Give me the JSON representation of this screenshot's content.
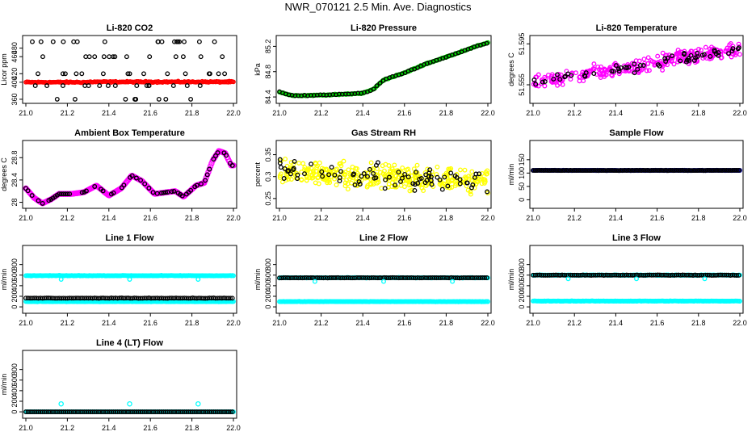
{
  "page": {
    "title": "NWR_070121  2.5 Min. Ave. Diagnostics"
  },
  "chart_data": [
    {
      "type": "scatter",
      "title": "Li-820 CO2",
      "xlabel": "",
      "ylabel": "Licor ppm",
      "xlim": [
        21.0,
        22.0
      ],
      "ylim": [
        358,
        502
      ],
      "xticks": [
        "21.0",
        "21.2",
        "21.4",
        "21.6",
        "21.8",
        "22.0"
      ],
      "yticks": [
        360,
        400,
        420,
        460,
        480
      ],
      "series": [
        {
          "name": "co2_main",
          "color": "#ff0000",
          "mean": 400,
          "noise": 1.2,
          "x": [
            21.0,
            22.0
          ]
        },
        {
          "name": "co2_flag",
          "color": "#000000",
          "levels": [
            360,
            392,
            420,
            460,
            495
          ],
          "x": [
            21.0,
            22.0
          ]
        }
      ]
    },
    {
      "type": "scatter",
      "title": "Li-820 Pressure",
      "xlabel": "",
      "ylabel": "kPa",
      "xlim": [
        21.0,
        22.0
      ],
      "ylim": [
        84.35,
        85.32
      ],
      "xticks": [
        "21.0",
        "21.2",
        "21.4",
        "21.6",
        "21.8",
        "22.0"
      ],
      "yticks": [
        84.4,
        84.8,
        85.2
      ],
      "series": [
        {
          "name": "pressure",
          "color": "#00cc00",
          "x": [
            21.0,
            21.05,
            21.1,
            21.2,
            21.3,
            21.4,
            21.45,
            21.5,
            21.6,
            21.7,
            21.8,
            21.9,
            22.0
          ],
          "y": [
            84.48,
            84.43,
            84.42,
            84.43,
            84.44,
            84.46,
            84.52,
            84.67,
            84.78,
            84.92,
            85.03,
            85.15,
            85.26
          ]
        },
        {
          "name": "pressure_flag",
          "color": "#000000",
          "x": [
            21.0,
            21.05,
            21.1,
            21.2,
            21.3,
            21.4,
            21.45,
            21.5,
            21.6,
            21.7,
            21.8,
            21.9,
            22.0
          ],
          "y": [
            84.48,
            84.43,
            84.42,
            84.43,
            84.44,
            84.46,
            84.52,
            84.67,
            84.78,
            84.92,
            85.03,
            85.15,
            85.26
          ]
        }
      ]
    },
    {
      "type": "scatter",
      "title": "Li-820 Temperature",
      "xlabel": "",
      "ylabel": "degrees C",
      "xlim": [
        21.0,
        22.0
      ],
      "ylim": [
        51.54,
        51.6
      ],
      "xticks": [
        "21.0",
        "21.2",
        "21.4",
        "21.6",
        "21.8",
        "22.0"
      ],
      "yticks": [
        "51.555",
        "51.595"
      ],
      "series": [
        {
          "name": "temp",
          "color": "#ff00ff",
          "x": [
            21.0,
            22.0
          ],
          "y": [
            51.557,
            51.59
          ]
        },
        {
          "name": "temp_flag",
          "color": "#000000",
          "x": [
            21.0,
            22.0
          ],
          "y": [
            51.557,
            51.59
          ]
        }
      ]
    },
    {
      "type": "scatter",
      "title": "Ambient Box Temperature",
      "xlabel": "",
      "ylabel": "degrees C",
      "xlim": [
        21.0,
        22.0
      ],
      "ylim": [
        27.95,
        29.05
      ],
      "xticks": [
        "21.0",
        "21.2",
        "21.4",
        "21.6",
        "21.8",
        "22.0"
      ],
      "yticks": [
        28.0,
        28.4,
        28.8
      ],
      "series": [
        {
          "name": "box_temp",
          "color": "#ff00ff",
          "x": [
            21.0,
            21.04,
            21.08,
            21.12,
            21.16,
            21.22,
            21.28,
            21.34,
            21.4,
            21.46,
            21.51,
            21.56,
            21.62,
            21.68,
            21.72,
            21.76,
            21.82,
            21.86,
            21.9,
            21.93,
            21.96,
            21.99
          ],
          "y": [
            28.25,
            28.08,
            27.98,
            28.05,
            28.15,
            28.15,
            28.18,
            28.3,
            28.12,
            28.25,
            28.48,
            28.38,
            28.15,
            28.18,
            28.2,
            28.1,
            28.3,
            28.35,
            28.75,
            28.92,
            28.88,
            28.66
          ]
        },
        {
          "name": "box_temp_flag",
          "color": "#000000",
          "x": [
            21.0,
            21.04,
            21.08,
            21.12,
            21.16,
            21.22,
            21.28,
            21.34,
            21.4,
            21.46,
            21.51,
            21.56,
            21.62,
            21.68,
            21.72,
            21.76,
            21.82,
            21.86,
            21.9,
            21.93,
            21.96,
            21.99
          ],
          "y": [
            28.25,
            28.08,
            27.98,
            28.05,
            28.15,
            28.15,
            28.18,
            28.3,
            28.12,
            28.25,
            28.48,
            28.38,
            28.15,
            28.18,
            28.2,
            28.1,
            28.3,
            28.35,
            28.75,
            28.92,
            28.88,
            28.66
          ]
        }
      ]
    },
    {
      "type": "scatter",
      "title": "Gas Stream RH",
      "xlabel": "",
      "ylabel": "percent",
      "xlim": [
        21.0,
        22.0
      ],
      "ylim": [
        0.235,
        0.375
      ],
      "xticks": [
        "21.0",
        "21.2",
        "21.4",
        "21.6",
        "21.8",
        "22.0"
      ],
      "yticks": [
        0.25,
        0.3,
        0.35
      ],
      "series": [
        {
          "name": "rh",
          "color": "#ffff00",
          "x": [
            21.0,
            22.0
          ],
          "y": [
            0.31,
            0.29
          ]
        },
        {
          "name": "rh_flag",
          "color": "#000000",
          "x": [
            21.0,
            22.0
          ],
          "y": [
            0.31,
            0.29
          ]
        }
      ]
    },
    {
      "type": "scatter",
      "title": "Sample Flow",
      "xlabel": "",
      "ylabel": "ml/min",
      "xlim": [
        21.0,
        22.0
      ],
      "ylim": [
        -20,
        210
      ],
      "xticks": [
        "21.0",
        "21.2",
        "21.4",
        "21.6",
        "21.8",
        "22.0"
      ],
      "yticks": [
        0,
        50,
        100,
        150
      ],
      "series": [
        {
          "name": "sample_flow",
          "color": "#000080",
          "x": [
            21.0,
            22.0
          ],
          "y": [
            110,
            110
          ]
        },
        {
          "name": "sample_flow_flag",
          "color": "#000000",
          "x": [
            21.0,
            22.0
          ],
          "y": [
            110,
            110
          ]
        }
      ]
    },
    {
      "type": "scatter",
      "title": "Line 1 Flow",
      "xlabel": "",
      "ylabel": "ml/min",
      "xlim": [
        21.0,
        22.0
      ],
      "ylim": [
        -60,
        1100
      ],
      "xticks": [
        "21.0",
        "21.2",
        "21.4",
        "21.6",
        "21.8",
        "22.0"
      ],
      "yticks": [
        0,
        200,
        400,
        600,
        800
      ],
      "series": [
        {
          "name": "line1_cyan_hi",
          "color": "#00ffff",
          "x": [
            21.0,
            22.0
          ],
          "y": [
            590,
            590
          ]
        },
        {
          "name": "line1_cyan_lo",
          "color": "#00ffff",
          "x": [
            21.0,
            22.0
          ],
          "y": [
            100,
            100
          ]
        },
        {
          "name": "line1_black",
          "color": "#000000",
          "x": [
            21.0,
            22.0
          ],
          "y": [
            165,
            165
          ]
        }
      ]
    },
    {
      "type": "scatter",
      "title": "Line 2 Flow",
      "xlabel": "",
      "ylabel": "ml/min",
      "xlim": [
        21.0,
        22.0
      ],
      "ylim": [
        -60,
        1100
      ],
      "xticks": [
        "21.0",
        "21.2",
        "21.4",
        "21.6",
        "21.8",
        "22.0"
      ],
      "yticks": [
        0,
        200,
        400,
        600,
        800
      ],
      "series": [
        {
          "name": "line2_cyan_hi",
          "color": "#00ffff",
          "x": [
            21.0,
            22.0
          ],
          "y": [
            550,
            550
          ]
        },
        {
          "name": "line2_cyan_lo",
          "color": "#00ffff",
          "x": [
            21.0,
            22.0
          ],
          "y": [
            100,
            100
          ]
        },
        {
          "name": "line2_black",
          "color": "#000000",
          "x": [
            21.0,
            22.0
          ],
          "y": [
            550,
            550
          ]
        }
      ]
    },
    {
      "type": "scatter",
      "title": "Line 3 Flow",
      "xlabel": "",
      "ylabel": "ml/min",
      "xlim": [
        21.0,
        22.0
      ],
      "ylim": [
        -60,
        1100
      ],
      "xticks": [
        "21.0",
        "21.2",
        "21.4",
        "21.6",
        "21.8",
        "22.0"
      ],
      "yticks": [
        0,
        200,
        400,
        600,
        800
      ],
      "series": [
        {
          "name": "line3_cyan_hi",
          "color": "#00ffff",
          "x": [
            21.0,
            22.0
          ],
          "y": [
            600,
            600
          ]
        },
        {
          "name": "line3_cyan_lo",
          "color": "#00ffff",
          "x": [
            21.0,
            22.0
          ],
          "y": [
            110,
            110
          ]
        },
        {
          "name": "line3_black",
          "color": "#000000",
          "x": [
            21.0,
            22.0
          ],
          "y": [
            600,
            600
          ]
        }
      ]
    },
    {
      "type": "scatter",
      "title": "Line 4 (LT) Flow",
      "xlabel": "",
      "ylabel": "ml/min",
      "xlim": [
        21.0,
        22.0
      ],
      "ylim": [
        -60,
        1100
      ],
      "xticks": [
        "21.0",
        "21.2",
        "21.4",
        "21.6",
        "21.8",
        "22.0"
      ],
      "yticks": [
        0,
        200,
        400,
        600,
        800
      ],
      "series": [
        {
          "name": "line4_cyan",
          "color": "#00ffff",
          "x": [
            21.0,
            22.0
          ],
          "y": [
            0,
            0
          ]
        },
        {
          "name": "line4_black",
          "color": "#000000",
          "x": [
            21.0,
            22.0
          ],
          "y": [
            0,
            0
          ]
        },
        {
          "name": "line4_spikes",
          "color": "#00ffff",
          "x": [
            21.17,
            21.5,
            21.83
          ],
          "y": [
            150,
            150,
            150
          ]
        }
      ]
    }
  ]
}
